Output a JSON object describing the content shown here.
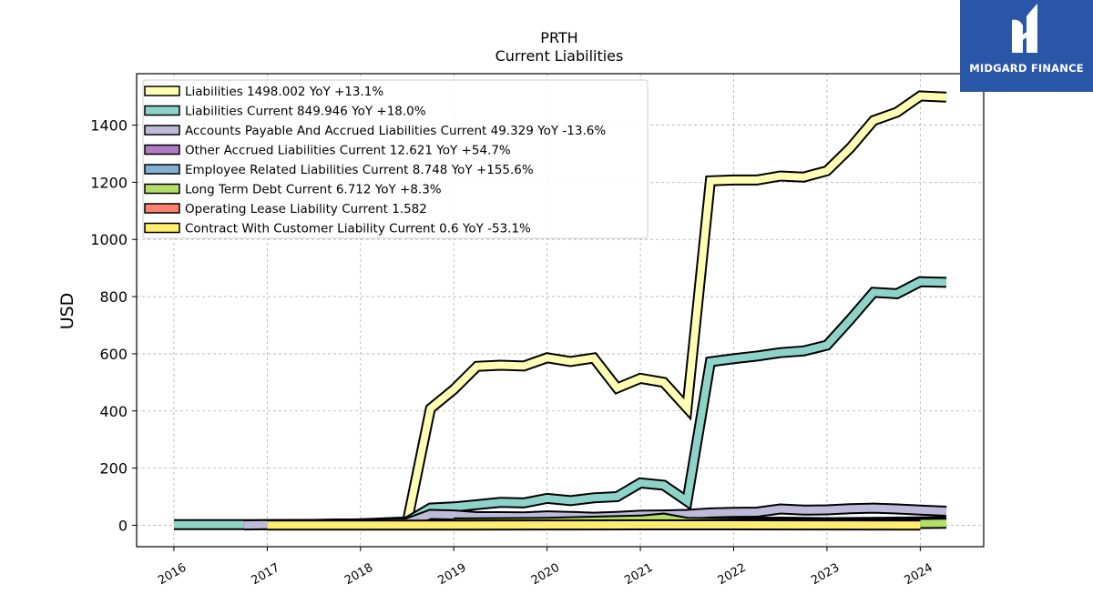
{
  "logo": {
    "brand_text": "MIDGARD FINANCE",
    "bg_color": "#2a56a8"
  },
  "chart_data": {
    "type": "line",
    "title": "PRTH",
    "subtitle": "Current  Liabilities",
    "ylabel": "USD",
    "xlabel": "",
    "ylim": [
      -75,
      1580
    ],
    "xlim": [
      2015.6,
      2024.68
    ],
    "yticks": [
      0,
      200,
      400,
      600,
      800,
      1000,
      1200,
      1400
    ],
    "xticks": [
      "2016",
      "2017",
      "2018",
      "2019",
      "2020",
      "2021",
      "2022",
      "2023",
      "2024"
    ],
    "grid": true,
    "legend_position": "top-left",
    "series": [
      {
        "name": "Liabilities  1498.002 YoY +13.1%",
        "color": "#ffffb3",
        "x": [
          2018.5,
          2018.75,
          2019.0,
          2019.25,
          2019.5,
          2019.75,
          2020.0,
          2020.25,
          2020.5,
          2020.75,
          2021.0,
          2021.25,
          2021.5,
          2021.75,
          2022.0,
          2022.25,
          2022.5,
          2022.75,
          2023.0,
          2023.25,
          2023.5,
          2023.75,
          2024.0,
          2024.28
        ],
        "y": [
          10,
          408,
          475,
          556,
          560,
          557,
          586,
          573,
          585,
          480,
          514,
          500,
          410,
          1205,
          1208,
          1208,
          1222,
          1218,
          1240,
          1320,
          1416,
          1445,
          1502,
          1498
        ]
      },
      {
        "name": "Liabilities Current  849.946 YoY +18.0%",
        "color": "#8dd3c7",
        "x": [
          2016.0,
          2016.25,
          2016.5,
          2016.75,
          2017.0,
          2017.5,
          2018.0,
          2018.5,
          2018.75,
          2019.0,
          2019.25,
          2019.5,
          2019.75,
          2020.0,
          2020.25,
          2020.5,
          2020.75,
          2021.0,
          2021.25,
          2021.5,
          2021.75,
          2022.0,
          2022.25,
          2022.5,
          2022.75,
          2023.0,
          2023.25,
          2023.5,
          2023.75,
          2024.0,
          2024.28
        ],
        "y": [
          2,
          2,
          2,
          2,
          2,
          3,
          5,
          12,
          60,
          64,
          72,
          80,
          78,
          94,
          86,
          96,
          100,
          148,
          140,
          84,
          572,
          583,
          592,
          604,
          610,
          630,
          720,
          815,
          810,
          852,
          850
        ]
      },
      {
        "name": "Accounts Payable And Accrued Liabilities Current  49.329 YoY -13.6%",
        "color": "#bebada",
        "x": [
          2016.75,
          2017.0,
          2017.5,
          2018.0,
          2018.5,
          2018.75,
          2019.0,
          2019.25,
          2019.5,
          2019.75,
          2020.0,
          2020.25,
          2020.5,
          2020.75,
          2021.0,
          2021.25,
          2021.5,
          2021.75,
          2022.0,
          2022.25,
          2022.5,
          2022.75,
          2023.0,
          2023.25,
          2023.5,
          2023.75,
          2024.0,
          2024.28
        ],
        "y": [
          1,
          2,
          3,
          5,
          8,
          38,
          36,
          30,
          30,
          29,
          33,
          31,
          28,
          31,
          35,
          36,
          38,
          43,
          45,
          46,
          57,
          53,
          54,
          58,
          60,
          57,
          53,
          49
        ]
      },
      {
        "name": "Other Accrued Liabilities Current  12.621 YoY +54.7%",
        "color": "#b07cc6",
        "x": [
          2019.0,
          2020.0,
          2021.0,
          2022.0,
          2022.5,
          2023.0,
          2023.5,
          2024.0,
          2024.28
        ],
        "y": [
          6,
          7,
          8,
          10,
          11,
          9,
          10,
          12,
          12.6
        ]
      },
      {
        "name": "Employee Related Liabilities Current  8.748 YoY +155.6%",
        "color": "#80b1d3",
        "x": [
          2021.75,
          2022.0,
          2022.5,
          2023.0,
          2023.5,
          2024.0,
          2024.28
        ],
        "y": [
          4,
          5,
          6,
          5,
          7,
          8,
          8.7
        ]
      },
      {
        "name": "Long Term Debt Current  6.712 YoY +8.3%",
        "color": "#b3de69",
        "x": [
          2019.0,
          2019.5,
          2020.0,
          2020.5,
          2021.0,
          2021.25,
          2021.5,
          2022.0,
          2022.5,
          2023.0,
          2023.5,
          2024.0,
          2024.28
        ],
        "y": [
          8,
          9,
          10,
          14,
          18,
          25,
          10,
          8,
          7,
          7,
          6,
          6,
          6.7
        ]
      },
      {
        "name": "Operating Lease Liability Current  1.582",
        "color": "#fb8072",
        "x": [
          2023.25,
          2023.5,
          2023.75,
          2024.0
        ],
        "y": [
          1.5,
          1.5,
          1.6,
          1.6
        ]
      },
      {
        "name": "Contract With Customer Liability Current  0.6 YoY -53.1%",
        "color": "#ffed6f",
        "x": [
          2017.0,
          2018.0,
          2019.0,
          2020.0,
          2021.0,
          2022.0,
          2023.0,
          2024.0
        ],
        "y": [
          0.5,
          0.6,
          0.9,
          1.2,
          1.5,
          1.3,
          1.2,
          0.6
        ]
      }
    ]
  }
}
